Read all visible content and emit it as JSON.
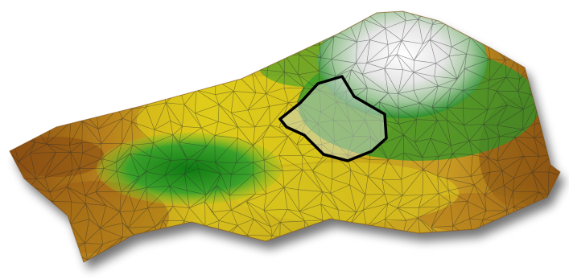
{
  "figure": {
    "kind": "tin-terrain-surface",
    "palette": {
      "low": "#8a4f12",
      "mid_low": "#caa12a",
      "mid": "#e0d21a",
      "high_green": "#1f8a1f",
      "peak": "#f4f4f4",
      "mesh_line": "#2b2b2b",
      "outline": "#000000",
      "highlight_fill": "#c9d3cc"
    },
    "region": {
      "label": "highlighted-polygon",
      "stroke": "#000000"
    }
  }
}
